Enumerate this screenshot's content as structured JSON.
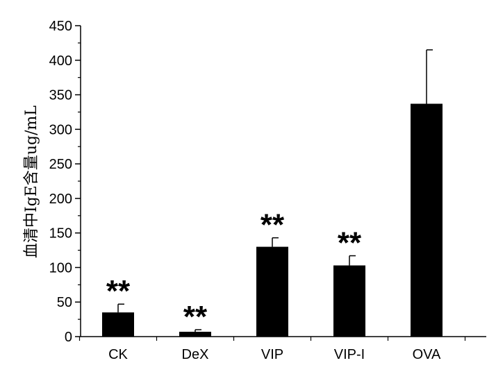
{
  "chart_data": {
    "type": "bar",
    "title": "",
    "xlabel": "",
    "ylabel": "血清中IgE含量ug/mL",
    "categories": [
      "CK",
      "DeX",
      "VIP",
      "VIP-I",
      "OVA"
    ],
    "values": [
      35,
      7,
      130,
      103,
      337
    ],
    "error": [
      12,
      3,
      13,
      14,
      78
    ],
    "significance": [
      "**",
      "**",
      "**",
      "**",
      ""
    ],
    "ylim": [
      0,
      450
    ],
    "yticks": [
      0,
      50,
      100,
      150,
      200,
      250,
      300,
      350,
      400,
      450
    ],
    "grid": false,
    "legend": "none",
    "bar_color": "#000000"
  }
}
